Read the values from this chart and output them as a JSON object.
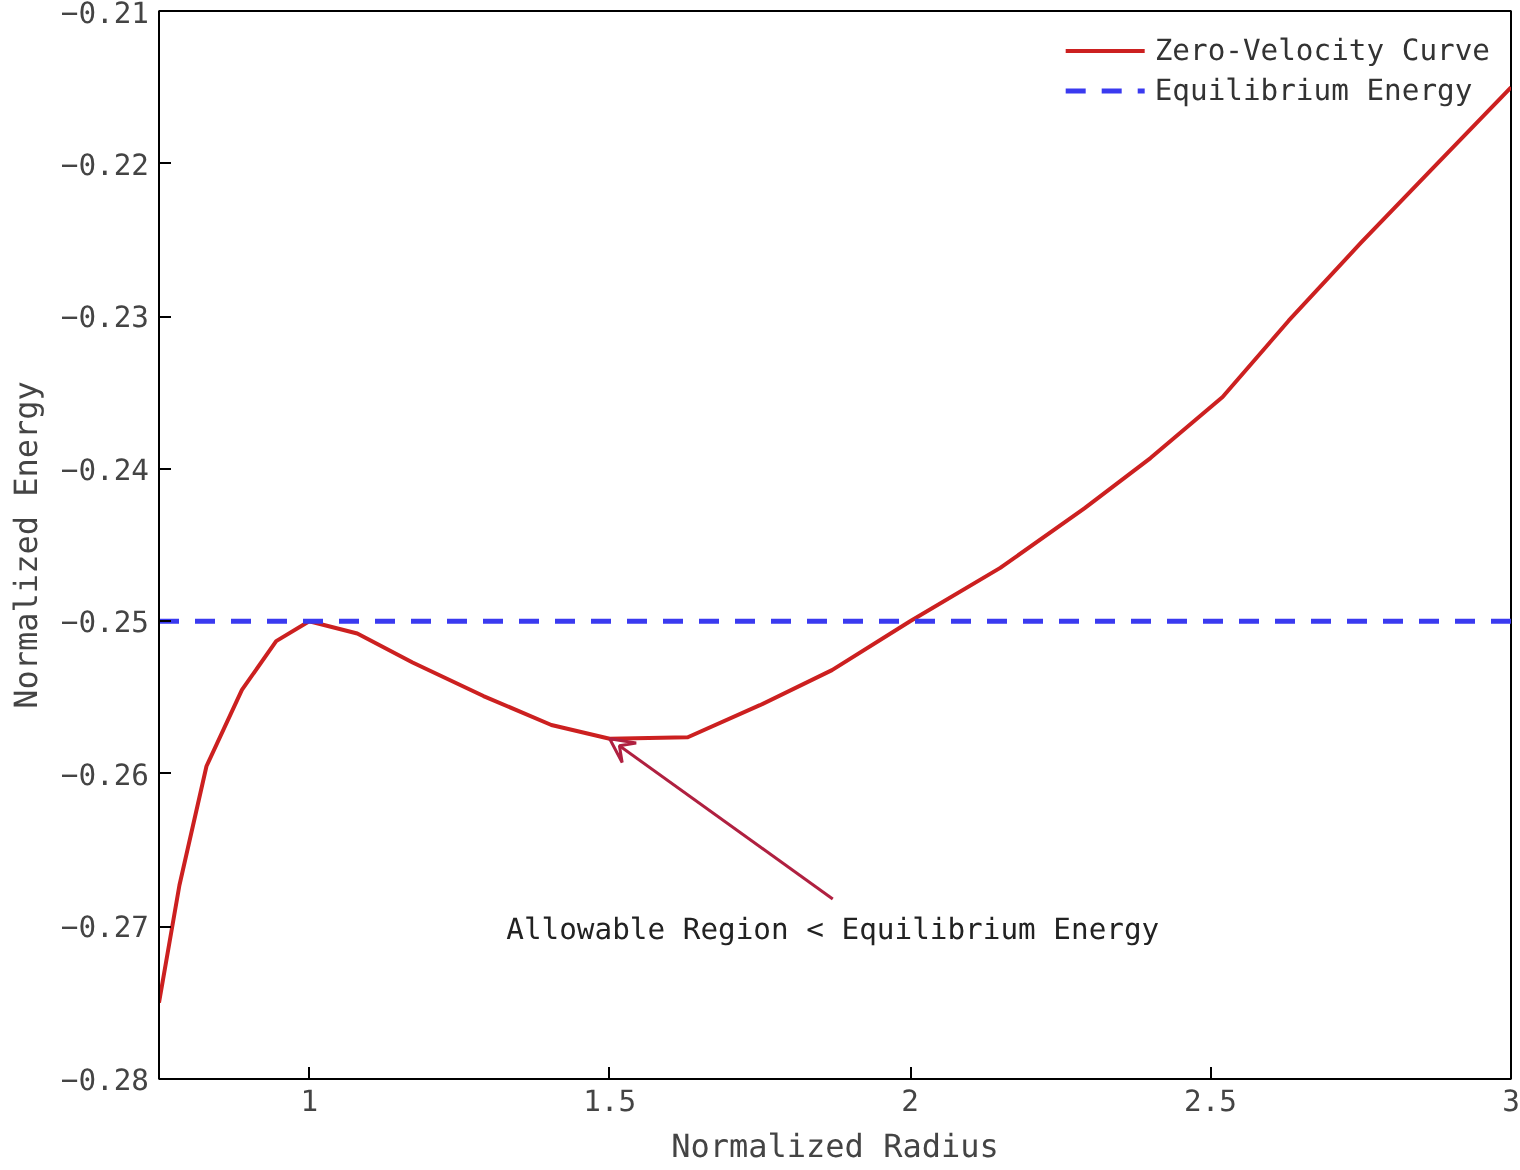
{
  "chart_data": {
    "type": "line",
    "xlabel": "Normalized Radius",
    "ylabel": "Normalized Energy",
    "xlim": [
      0.75,
      3
    ],
    "ylim": [
      -0.28,
      -0.21
    ],
    "xticks": [
      1,
      1.5,
      2,
      2.5,
      3
    ],
    "yticks": [
      -0.28,
      -0.27,
      -0.26,
      -0.25,
      -0.24,
      -0.23,
      -0.22,
      -0.21
    ],
    "grid": false,
    "legend": "top right",
    "series": [
      {
        "name": "Zero-Velocity Curve",
        "color": "#cc2020",
        "line_style": "solid",
        "x": [
          0.75,
          0.784,
          0.829,
          0.888,
          0.945,
          1.0,
          1.08,
          1.172,
          1.29,
          1.403,
          1.5,
          1.63,
          1.75,
          1.87,
          2.0,
          2.15,
          2.29,
          2.4,
          2.52,
          2.63,
          2.75,
          2.87,
          3.0
        ],
        "values": [
          -0.275,
          -0.2673,
          -0.2595,
          -0.2545,
          -0.2513,
          -0.25,
          -0.2508,
          -0.2527,
          -0.2549,
          -0.2568,
          -0.2577,
          -0.2576,
          -0.2555,
          -0.2532,
          -0.25,
          -0.2465,
          -0.2426,
          -0.2393,
          -0.2353,
          -0.2303,
          -0.2252,
          -0.2203,
          -0.215
        ]
      },
      {
        "name": "Equilibrium Energy",
        "color": "#3a3af0",
        "line_style": "dashed",
        "x": [
          0.75,
          3
        ],
        "values": [
          -0.25,
          -0.25
        ]
      }
    ],
    "annotations": [
      {
        "text": "Allowable Region < Equilibrium Energy",
        "x": 1.5,
        "y": -0.2577
      }
    ]
  }
}
